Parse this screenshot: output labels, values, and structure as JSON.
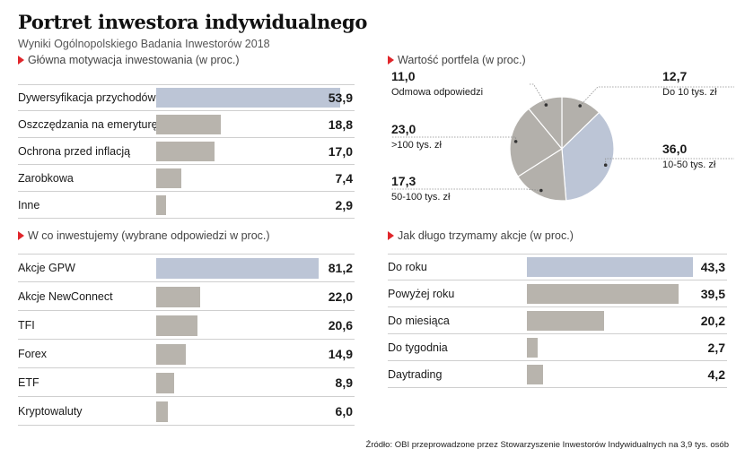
{
  "header": {
    "title": "Portret inwestora indywidualnego",
    "subtitle": "Wyniki Ogólnopolskiego Badania Inwestorów 2018"
  },
  "colors": {
    "accent": "#e0262b",
    "highlight": "#bcc5d6",
    "bar": "#b8b4ad",
    "pie_dark": "#b3b0ab",
    "pie_light": "#bcc5d6"
  },
  "chart_data": [
    {
      "type": "bar",
      "title": "Główna motywacja inwestowania (w proc.)",
      "categories": [
        "Dywersyfikacja przychodów",
        "Oszczędzania na emeryturę",
        "Ochrona przed inflacją",
        "Zarobkowa",
        "Inne"
      ],
      "values": [
        53.9,
        18.8,
        17.0,
        7.4,
        2.9
      ],
      "value_labels": [
        "53,9",
        "18,8",
        "17,0",
        "7,4",
        "2,9"
      ],
      "xlim": [
        0,
        53.9
      ]
    },
    {
      "type": "bar",
      "title": "W co inwestujemy (wybrane odpowiedzi w proc.)",
      "categories": [
        "Akcje GPW",
        "Akcje NewConnect",
        "TFI",
        "Forex",
        "ETF",
        "Kryptowaluty"
      ],
      "values": [
        81.2,
        22.0,
        20.6,
        14.9,
        8.9,
        6.0
      ],
      "value_labels": [
        "81,2",
        "22,0",
        "20,6",
        "14,9",
        "8,9",
        "6,0"
      ],
      "xlim": [
        0,
        81.2
      ]
    },
    {
      "type": "pie",
      "title": "Wartość portfela (w proc.)",
      "slices": [
        {
          "label": "Do 10 tys. zł",
          "value": 12.7,
          "value_label": "12,7",
          "color": "#b3b0ab"
        },
        {
          "label": "10-50 tys. zł",
          "value": 36.0,
          "value_label": "36,0",
          "color": "#bcc5d6"
        },
        {
          "label": "50-100 tys. zł",
          "value": 17.3,
          "value_label": "17,3",
          "color": "#b3b0ab"
        },
        {
          "label": ">100 tys. zł",
          "value": 23.0,
          "value_label": "23,0",
          "color": "#b3b0ab"
        },
        {
          "label": "Odmowa odpowiedzi",
          "value": 11.0,
          "value_label": "11,0",
          "color": "#b3b0ab"
        }
      ]
    },
    {
      "type": "bar",
      "title": "Jak długo trzymamy akcje (w proc.)",
      "categories": [
        "Do roku",
        "Powyżej roku",
        "Do miesiąca",
        "Do tygodnia",
        "Daytrading"
      ],
      "values": [
        43.3,
        39.5,
        20.2,
        2.7,
        4.2
      ],
      "value_labels": [
        "43,3",
        "39,5",
        "20,2",
        "2,7",
        "4,2"
      ],
      "xlim": [
        0,
        43.3
      ]
    }
  ],
  "footer": {
    "source": "Źródło: OBI przeprowadzone przez Stowarzyszenie Inwestorów Indywidualnych na 3,9 tys. osób"
  }
}
